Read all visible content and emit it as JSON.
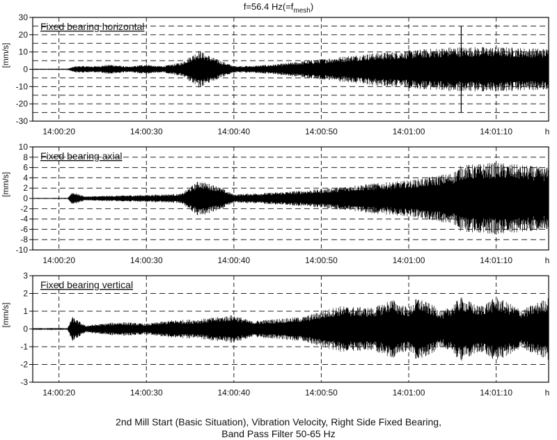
{
  "chart_data": {
    "type": "line",
    "title_prefix": "f=56.4 Hz(=f",
    "title_subscript": "mesh",
    "title_suffix": ")",
    "caption": [
      "2nd Mill Start (Basic Situation), Vibration Velocity, Right Side Fixed Bearing,",
      "Band Pass Filter 50-65 Hz"
    ],
    "x_unit_label": "h",
    "x_ticks": [
      "14:00:20",
      "14:00:30",
      "14:00:40",
      "14:00:50",
      "14:01:00",
      "14:01:10"
    ],
    "x_range_seconds": [
      "14:00:17",
      "14:01:16"
    ],
    "grid": "dashed",
    "series": [
      {
        "name": "Fixed bearing horizontal",
        "ylabel": "[mm/s]",
        "ylim": [
          -30,
          30
        ],
        "yticks": [
          -30,
          -20,
          -10,
          0,
          10,
          20,
          30
        ],
        "grid_step": 5,
        "envelope": [
          {
            "t": "14:00:17",
            "amp": 0.3
          },
          {
            "t": "14:00:21",
            "amp": 0.4
          },
          {
            "t": "14:00:22",
            "amp": 2
          },
          {
            "t": "14:00:24",
            "amp": 1.8
          },
          {
            "t": "14:00:26",
            "amp": 2.8
          },
          {
            "t": "14:00:28",
            "amp": 1.5
          },
          {
            "t": "14:00:30",
            "amp": 3
          },
          {
            "t": "14:00:31",
            "amp": 2
          },
          {
            "t": "14:00:32",
            "amp": 2
          },
          {
            "t": "14:00:34",
            "amp": 4
          },
          {
            "t": "14:00:36",
            "amp": 11
          },
          {
            "t": "14:00:38",
            "amp": 6
          },
          {
            "t": "14:00:40",
            "amp": 2
          },
          {
            "t": "14:00:42",
            "amp": 2
          },
          {
            "t": "14:00:45",
            "amp": 3
          },
          {
            "t": "14:00:50",
            "amp": 6
          },
          {
            "t": "14:00:55",
            "amp": 9
          },
          {
            "t": "14:01:00",
            "amp": 11
          },
          {
            "t": "14:01:05",
            "amp": 13
          },
          {
            "t": "14:01:10",
            "amp": 13
          },
          {
            "t": "14:01:16",
            "amp": 12
          }
        ],
        "spike": {
          "t": "14:01:06",
          "min": -25,
          "max": 25
        }
      },
      {
        "name": "Fixed bearing axial",
        "ylabel": "[mm/s]",
        "ylim": [
          -10,
          10
        ],
        "yticks": [
          -10,
          -8,
          -6,
          -4,
          -2,
          0,
          2,
          4,
          6,
          8,
          10
        ],
        "grid_step": 2,
        "envelope": [
          {
            "t": "14:00:17",
            "amp": 0.1
          },
          {
            "t": "14:00:21",
            "amp": 0.1
          },
          {
            "t": "14:00:21.5",
            "amp": 1.3
          },
          {
            "t": "14:00:23",
            "amp": 0.4
          },
          {
            "t": "14:00:30",
            "amp": 0.7
          },
          {
            "t": "14:00:34",
            "amp": 0.9
          },
          {
            "t": "14:00:36",
            "amp": 3.5
          },
          {
            "t": "14:00:38",
            "amp": 2.5
          },
          {
            "t": "14:00:40",
            "amp": 0.8
          },
          {
            "t": "14:00:45",
            "amp": 1.2
          },
          {
            "t": "14:00:50",
            "amp": 1.8
          },
          {
            "t": "14:00:55",
            "amp": 2.8
          },
          {
            "t": "14:01:00",
            "amp": 3.5
          },
          {
            "t": "14:01:05",
            "amp": 5
          },
          {
            "t": "14:01:06",
            "amp": 6.5
          },
          {
            "t": "14:01:10",
            "amp": 7
          },
          {
            "t": "14:01:16",
            "amp": 6
          }
        ]
      },
      {
        "name": "Fixed bearing vertical",
        "ylabel": "[mm/s]",
        "ylim": [
          -3,
          3
        ],
        "yticks": [
          -3,
          -2,
          -1,
          0,
          1,
          2,
          3
        ],
        "grid_step": 1,
        "envelope": [
          {
            "t": "14:00:17",
            "amp": 0.05
          },
          {
            "t": "14:00:21",
            "amp": 0.05
          },
          {
            "t": "14:00:21.5",
            "amp": 0.7
          },
          {
            "t": "14:00:23",
            "amp": 0.2
          },
          {
            "t": "14:00:27",
            "amp": 0.4
          },
          {
            "t": "14:00:30",
            "amp": 0.3
          },
          {
            "t": "14:00:33",
            "amp": 0.5
          },
          {
            "t": "14:00:36",
            "amp": 0.55
          },
          {
            "t": "14:00:40",
            "amp": 0.8
          },
          {
            "t": "14:00:42",
            "amp": 0.45
          },
          {
            "t": "14:00:48",
            "amp": 0.7
          },
          {
            "t": "14:00:52",
            "amp": 1.3
          },
          {
            "t": "14:00:56",
            "amp": 1.2
          },
          {
            "t": "14:00:58",
            "amp": 1.7
          },
          {
            "t": "14:01:00",
            "amp": 1.2
          },
          {
            "t": "14:01:01",
            "amp": 1.8
          },
          {
            "t": "14:01:04",
            "amp": 1.0
          },
          {
            "t": "14:01:06",
            "amp": 1.8
          },
          {
            "t": "14:01:08",
            "amp": 1.3
          },
          {
            "t": "14:01:10",
            "amp": 1.8
          },
          {
            "t": "14:01:13",
            "amp": 1.1
          },
          {
            "t": "14:01:16",
            "amp": 1.8
          }
        ]
      }
    ]
  }
}
